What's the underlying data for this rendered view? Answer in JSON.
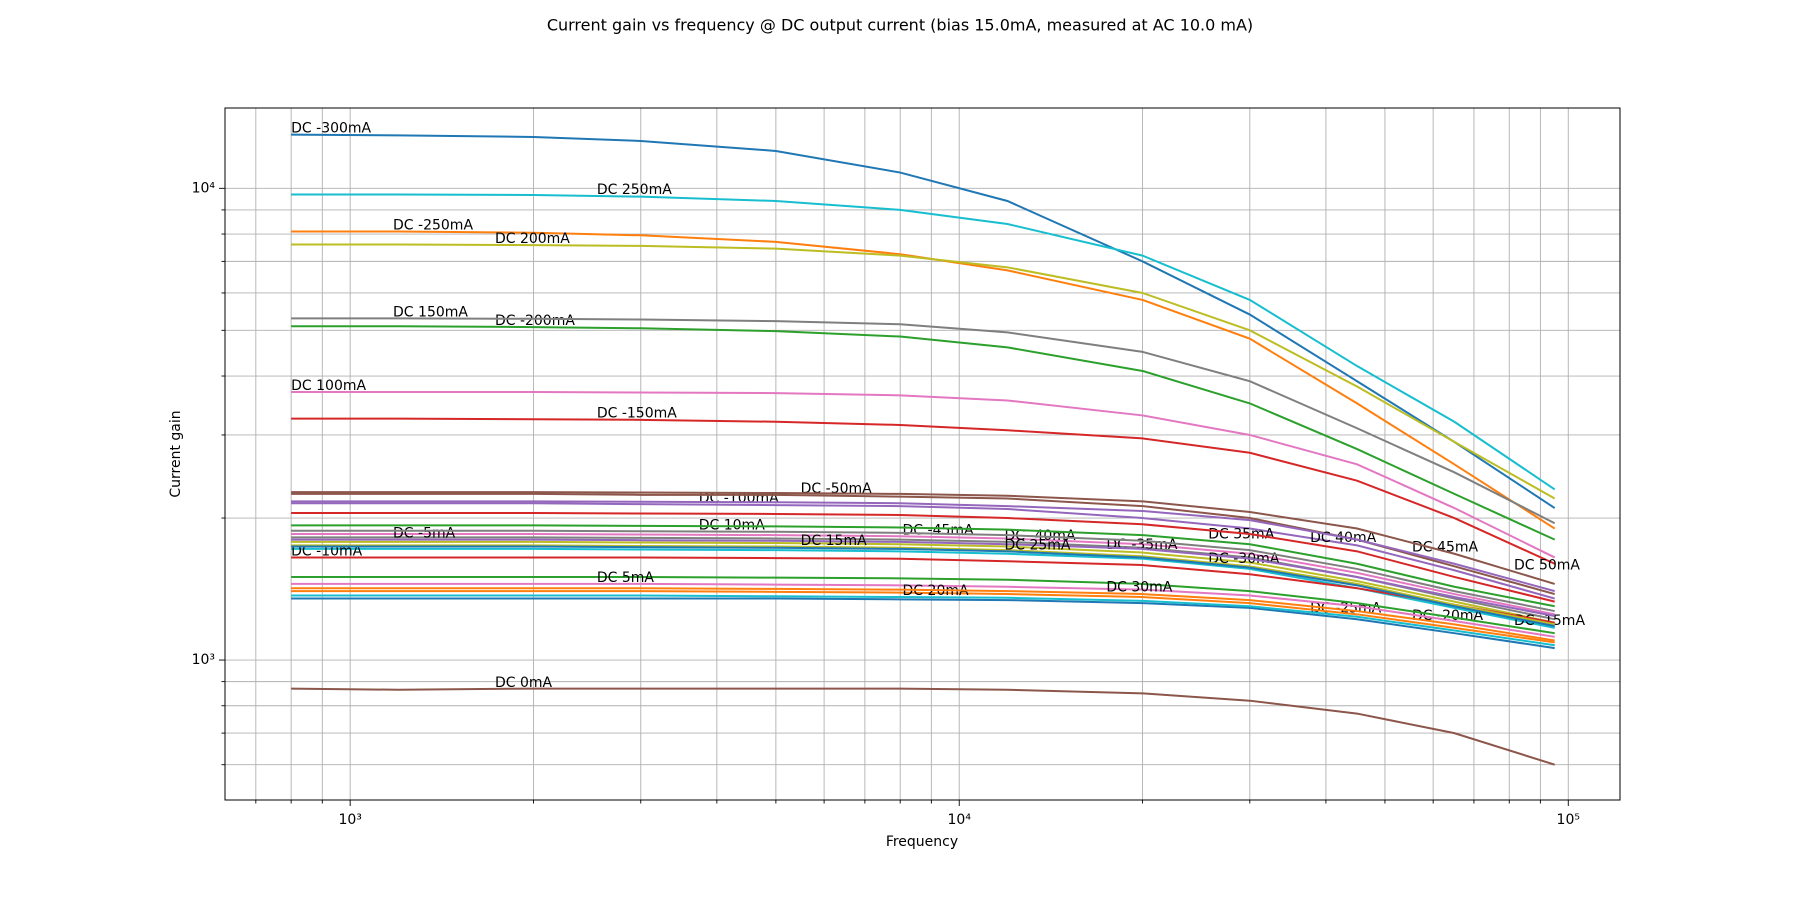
{
  "chart_data": {
    "type": "line",
    "title": "Current gain vs frequency @ DC output current (bias 15.0mA, measured at AC 10.0 mA)",
    "xlabel": "Frequency",
    "ylabel": "Current gain",
    "xscale": "log",
    "yscale": "log",
    "grid": true,
    "xlim": [
      623,
      121600
    ],
    "ylim": [
      505,
      14800
    ],
    "xticks": [
      {
        "value": 1000,
        "label": "10³"
      },
      {
        "value": 10000,
        "label": "10⁴"
      },
      {
        "value": 100000,
        "label": "10⁵"
      }
    ],
    "xminorticks": [
      700,
      800,
      900,
      2000,
      3000,
      4000,
      5000,
      6000,
      7000,
      8000,
      9000,
      20000,
      30000,
      40000,
      50000,
      60000,
      70000,
      80000,
      90000
    ],
    "yticks": [
      {
        "value": 1000,
        "label": "10³"
      },
      {
        "value": 10000,
        "label": "10⁴"
      }
    ],
    "yminorticks": [
      600,
      700,
      800,
      900,
      2000,
      3000,
      4000,
      5000,
      6000,
      7000,
      8000,
      9000
    ],
    "x": [
      800,
      1200,
      2000,
      3000,
      5000,
      8000,
      12000,
      20000,
      30000,
      45000,
      65000,
      95000
    ],
    "series": [
      {
        "name": "DC -300mA",
        "color": "#1f77b4",
        "values": [
          13000,
          12950,
          12850,
          12600,
          12000,
          10800,
          9400,
          7000,
          5400,
          3900,
          2900,
          2100
        ]
      },
      {
        "name": "DC -250mA",
        "color": "#ff7f0e",
        "values": [
          8100,
          8100,
          8050,
          7950,
          7700,
          7250,
          6700,
          5800,
          4800,
          3500,
          2600,
          1900
        ]
      },
      {
        "name": "DC -200mA",
        "color": "#2ca02c",
        "values": [
          5100,
          5100,
          5080,
          5050,
          4980,
          4850,
          4600,
          4100,
          3500,
          2800,
          2250,
          1800
        ]
      },
      {
        "name": "DC -150mA",
        "color": "#d62728",
        "values": [
          3250,
          3250,
          3240,
          3230,
          3200,
          3150,
          3070,
          2950,
          2750,
          2400,
          2000,
          1600
        ]
      },
      {
        "name": "DC -100mA",
        "color": "#9467bd",
        "values": [
          2150,
          2150,
          2150,
          2140,
          2130,
          2120,
          2090,
          2000,
          1900,
          1750,
          1550,
          1350
        ]
      },
      {
        "name": "DC -50mA",
        "color": "#8c564b",
        "values": [
          2250,
          2250,
          2250,
          2240,
          2240,
          2220,
          2200,
          2120,
          2000,
          1800,
          1580,
          1380
        ]
      },
      {
        "name": "DC -45mA",
        "color": "#e377c2",
        "values": [
          1850,
          1850,
          1850,
          1845,
          1840,
          1830,
          1810,
          1760,
          1680,
          1530,
          1380,
          1250
        ]
      },
      {
        "name": "DC -40mA",
        "color": "#7f7f7f",
        "values": [
          1820,
          1820,
          1820,
          1815,
          1810,
          1800,
          1780,
          1730,
          1650,
          1500,
          1350,
          1220
        ]
      },
      {
        "name": "DC -35mA",
        "color": "#bcbd22",
        "values": [
          1780,
          1780,
          1780,
          1775,
          1770,
          1760,
          1740,
          1690,
          1610,
          1470,
          1330,
          1200
        ]
      },
      {
        "name": "DC -30mA",
        "color": "#17becf",
        "values": [
          1720,
          1720,
          1720,
          1715,
          1710,
          1700,
          1680,
          1640,
          1560,
          1420,
          1290,
          1170
        ]
      },
      {
        "name": "DC -25mA",
        "color": "#1f77b4",
        "values": [
          1350,
          1350,
          1350,
          1350,
          1350,
          1345,
          1340,
          1320,
          1290,
          1220,
          1140,
          1060
        ]
      },
      {
        "name": "DC -20mA",
        "color": "#ff7f0e",
        "values": [
          1400,
          1400,
          1400,
          1400,
          1395,
          1390,
          1380,
          1360,
          1320,
          1250,
          1170,
          1090
        ]
      },
      {
        "name": "DC -15mA",
        "color": "#2ca02c",
        "values": [
          1500,
          1500,
          1500,
          1500,
          1495,
          1490,
          1480,
          1450,
          1400,
          1320,
          1230,
          1140
        ]
      },
      {
        "name": "DC -10mA",
        "color": "#d62728",
        "values": [
          1650,
          1650,
          1650,
          1650,
          1645,
          1640,
          1620,
          1590,
          1520,
          1420,
          1310,
          1200
        ]
      },
      {
        "name": "DC -5mA",
        "color": "#9467bd",
        "values": [
          1800,
          1800,
          1800,
          1795,
          1790,
          1780,
          1760,
          1720,
          1640,
          1500,
          1360,
          1240
        ]
      },
      {
        "name": "DC 0mA",
        "color": "#8c564b",
        "values": [
          870,
          865,
          870,
          870,
          870,
          870,
          865,
          850,
          820,
          770,
          700,
          600
        ]
      },
      {
        "name": "DC 5mA",
        "color": "#e377c2",
        "values": [
          1450,
          1450,
          1450,
          1450,
          1445,
          1440,
          1430,
          1410,
          1370,
          1300,
          1210,
          1120
        ]
      },
      {
        "name": "DC 10mA",
        "color": "#7f7f7f",
        "values": [
          1880,
          1880,
          1880,
          1875,
          1870,
          1860,
          1840,
          1790,
          1710,
          1560,
          1400,
          1270
        ]
      },
      {
        "name": "DC 15mA",
        "color": "#bcbd22",
        "values": [
          1750,
          1750,
          1750,
          1745,
          1740,
          1730,
          1710,
          1660,
          1580,
          1450,
          1310,
          1190
        ]
      },
      {
        "name": "DC 20mA",
        "color": "#17becf",
        "values": [
          1370,
          1370,
          1370,
          1370,
          1365,
          1360,
          1355,
          1335,
          1300,
          1235,
          1155,
          1075
        ]
      },
      {
        "name": "DC 25mA",
        "color": "#1f77b4",
        "values": [
          1740,
          1740,
          1740,
          1735,
          1730,
          1720,
          1700,
          1650,
          1570,
          1440,
          1300,
          1180
        ]
      },
      {
        "name": "DC 30mA",
        "color": "#ff7f0e",
        "values": [
          1420,
          1420,
          1420,
          1420,
          1415,
          1410,
          1400,
          1380,
          1340,
          1270,
          1190,
          1100
        ]
      },
      {
        "name": "DC 35mA",
        "color": "#2ca02c",
        "values": [
          1930,
          1930,
          1930,
          1925,
          1920,
          1910,
          1890,
          1840,
          1760,
          1600,
          1430,
          1300
        ]
      },
      {
        "name": "DC 40mA",
        "color": "#d62728",
        "values": [
          2050,
          2050,
          2050,
          2045,
          2040,
          2030,
          2000,
          1940,
          1850,
          1700,
          1500,
          1330
        ]
      },
      {
        "name": "DC 45mA",
        "color": "#9467bd",
        "values": [
          2170,
          2170,
          2170,
          2165,
          2160,
          2150,
          2120,
          2070,
          1980,
          1800,
          1600,
          1400
        ]
      },
      {
        "name": "DC 50mA",
        "color": "#8c564b",
        "values": [
          2270,
          2270,
          2270,
          2265,
          2260,
          2250,
          2230,
          2170,
          2060,
          1900,
          1680,
          1450
        ]
      },
      {
        "name": "DC 100mA",
        "color": "#e377c2",
        "values": [
          3700,
          3700,
          3700,
          3690,
          3680,
          3640,
          3550,
          3300,
          3000,
          2600,
          2100,
          1650
        ]
      },
      {
        "name": "DC 150mA",
        "color": "#7f7f7f",
        "values": [
          5300,
          5300,
          5290,
          5270,
          5230,
          5150,
          4950,
          4500,
          3900,
          3100,
          2500,
          1950
        ]
      },
      {
        "name": "DC 200mA",
        "color": "#bcbd22",
        "values": [
          7600,
          7600,
          7580,
          7550,
          7450,
          7200,
          6800,
          6000,
          5000,
          3800,
          2900,
          2200
        ]
      },
      {
        "name": "DC 250mA",
        "color": "#17becf",
        "values": [
          9700,
          9700,
          9680,
          9600,
          9400,
          9000,
          8400,
          7200,
          5800,
          4200,
          3200,
          2300
        ]
      }
    ]
  }
}
